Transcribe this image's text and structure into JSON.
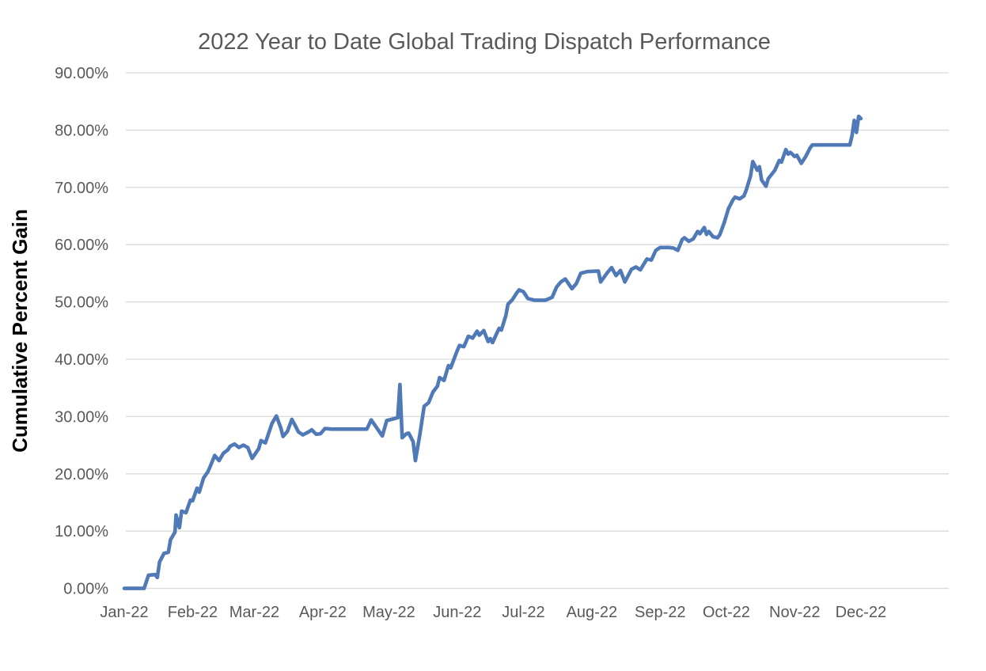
{
  "colors": {
    "background": "#ffffff",
    "title_text": "#595959",
    "tick_text": "#595959",
    "gridline": "#d9d9d9",
    "axis_line": "#d9d9d9",
    "y_axis_title_text": "#000000",
    "series_line": "#4f7ab7"
  },
  "chart_data": {
    "type": "line",
    "title": "2022 Year to Date Global Trading Dispatch Performance",
    "ylabel": "Cumulative Percent Gain",
    "xlabel": "",
    "legend": false,
    "grid": true,
    "ylim": [
      0,
      90
    ],
    "y_ticks": {
      "values": [
        0,
        10,
        20,
        30,
        40,
        50,
        60,
        70,
        80,
        90
      ],
      "labels": [
        "0.00%",
        "10.00%",
        "20.00%",
        "30.00%",
        "40.00%",
        "50.00%",
        "60.00%",
        "70.00%",
        "80.00%",
        "90.00%"
      ]
    },
    "x_axis": {
      "tick_labels": [
        "Jan-22",
        "Feb-22",
        "Mar-22",
        "Apr-22",
        "May-22",
        "Jun-22",
        "Jul-22",
        "Aug-22",
        "Sep-22",
        "Oct-22",
        "Nov-22",
        "Dec-22"
      ],
      "tick_days": [
        0,
        31,
        59,
        90,
        120,
        151,
        181,
        212,
        243,
        273,
        304,
        334
      ],
      "axis_extent_days": 374
    },
    "series": [
      {
        "name": "Cumulative Percent Gain",
        "units": "percent",
        "x_units": "days since Jan 1 2022",
        "points": [
          [
            0,
            0.0
          ],
          [
            5,
            0.0
          ],
          [
            9,
            0.0
          ],
          [
            11,
            2.3
          ],
          [
            14,
            2.4
          ],
          [
            15,
            1.9
          ],
          [
            16,
            4.6
          ],
          [
            18,
            6.1
          ],
          [
            20,
            6.3
          ],
          [
            21,
            8.5
          ],
          [
            23,
            9.8
          ],
          [
            23.5,
            12.8
          ],
          [
            25,
            10.6
          ],
          [
            26,
            13.5
          ],
          [
            28,
            13.2
          ],
          [
            30,
            15.4
          ],
          [
            31,
            15.3
          ],
          [
            33,
            17.5
          ],
          [
            34,
            16.8
          ],
          [
            36,
            19.3
          ],
          [
            38,
            20.4
          ],
          [
            39,
            21.3
          ],
          [
            41,
            23.2
          ],
          [
            43,
            22.3
          ],
          [
            45,
            23.6
          ],
          [
            47,
            24.2
          ],
          [
            48,
            24.8
          ],
          [
            50,
            25.2
          ],
          [
            52,
            24.6
          ],
          [
            54,
            25.0
          ],
          [
            56,
            24.6
          ],
          [
            58,
            22.7
          ],
          [
            61,
            24.4
          ],
          [
            62,
            25.8
          ],
          [
            64,
            25.4
          ],
          [
            67,
            28.8
          ],
          [
            69,
            30.1
          ],
          [
            71,
            28.0
          ],
          [
            72,
            26.5
          ],
          [
            74,
            27.4
          ],
          [
            76,
            29.5
          ],
          [
            77,
            28.8
          ],
          [
            79,
            27.3
          ],
          [
            81,
            26.8
          ],
          [
            84,
            27.4
          ],
          [
            85,
            27.7
          ],
          [
            87,
            26.9
          ],
          [
            89,
            27.0
          ],
          [
            91,
            27.9
          ],
          [
            94,
            27.8
          ],
          [
            101,
            27.8
          ],
          [
            110,
            27.8
          ],
          [
            112,
            29.4
          ],
          [
            114,
            28.3
          ],
          [
            117,
            26.6
          ],
          [
            119,
            29.3
          ],
          [
            123,
            29.7
          ],
          [
            124,
            29.8
          ],
          [
            125,
            35.6
          ],
          [
            126,
            26.3
          ],
          [
            128,
            27.0
          ],
          [
            129,
            27.1
          ],
          [
            131,
            25.6
          ],
          [
            132,
            22.3
          ],
          [
            134,
            26.8
          ],
          [
            136,
            31.8
          ],
          [
            138,
            32.4
          ],
          [
            140,
            34.3
          ],
          [
            142,
            35.3
          ],
          [
            143,
            36.8
          ],
          [
            145,
            36.3
          ],
          [
            147,
            38.9
          ],
          [
            148,
            38.5
          ],
          [
            151,
            41.5
          ],
          [
            152,
            42.4
          ],
          [
            154,
            42.2
          ],
          [
            156,
            44.0
          ],
          [
            158,
            43.7
          ],
          [
            160,
            44.9
          ],
          [
            161,
            44.2
          ],
          [
            163,
            45.0
          ],
          [
            165,
            43.1
          ],
          [
            166,
            43.6
          ],
          [
            167,
            42.9
          ],
          [
            169,
            44.6
          ],
          [
            170,
            45.4
          ],
          [
            171,
            45.1
          ],
          [
            173,
            47.6
          ],
          [
            174,
            49.6
          ],
          [
            176,
            50.4
          ],
          [
            178,
            51.6
          ],
          [
            179,
            52.1
          ],
          [
            181,
            51.8
          ],
          [
            183,
            50.6
          ],
          [
            186,
            50.3
          ],
          [
            191,
            50.3
          ],
          [
            194,
            50.8
          ],
          [
            196,
            52.6
          ],
          [
            198,
            53.5
          ],
          [
            200,
            54.0
          ],
          [
            203,
            52.3
          ],
          [
            205,
            53.2
          ],
          [
            207,
            55.0
          ],
          [
            210,
            55.3
          ],
          [
            215,
            55.4
          ],
          [
            216,
            53.5
          ],
          [
            219,
            55.1
          ],
          [
            221,
            56.0
          ],
          [
            223,
            54.6
          ],
          [
            225,
            55.5
          ],
          [
            227,
            53.5
          ],
          [
            230,
            55.7
          ],
          [
            232,
            56.1
          ],
          [
            234,
            55.6
          ],
          [
            237,
            57.5
          ],
          [
            239,
            57.3
          ],
          [
            241,
            59.0
          ],
          [
            243,
            59.5
          ],
          [
            247,
            59.5
          ],
          [
            249,
            59.4
          ],
          [
            251,
            59.0
          ],
          [
            253,
            60.9
          ],
          [
            254,
            61.2
          ],
          [
            256,
            60.6
          ],
          [
            258,
            61.0
          ],
          [
            260,
            62.3
          ],
          [
            261,
            61.9
          ],
          [
            263,
            63.0
          ],
          [
            264,
            61.8
          ],
          [
            265,
            62.3
          ],
          [
            267,
            61.4
          ],
          [
            269,
            61.2
          ],
          [
            270,
            61.7
          ],
          [
            272,
            63.8
          ],
          [
            274,
            66.3
          ],
          [
            276,
            67.8
          ],
          [
            277,
            68.3
          ],
          [
            279,
            68.0
          ],
          [
            281,
            68.5
          ],
          [
            282,
            69.5
          ],
          [
            284,
            72.0
          ],
          [
            285,
            74.5
          ],
          [
            287,
            73.0
          ],
          [
            288,
            73.6
          ],
          [
            289,
            71.3
          ],
          [
            291,
            70.2
          ],
          [
            292,
            71.5
          ],
          [
            295,
            73.0
          ],
          [
            297,
            74.7
          ],
          [
            298,
            74.4
          ],
          [
            300,
            76.6
          ],
          [
            301,
            75.8
          ],
          [
            302,
            76.1
          ],
          [
            304,
            75.4
          ],
          [
            305,
            75.6
          ],
          [
            307,
            74.2
          ],
          [
            309,
            75.4
          ],
          [
            311,
            76.9
          ],
          [
            312,
            77.4
          ],
          [
            329,
            77.4
          ],
          [
            330,
            79.0
          ],
          [
            331,
            81.7
          ],
          [
            332,
            79.6
          ],
          [
            333,
            82.4
          ],
          [
            334,
            82.0
          ]
        ]
      }
    ]
  }
}
